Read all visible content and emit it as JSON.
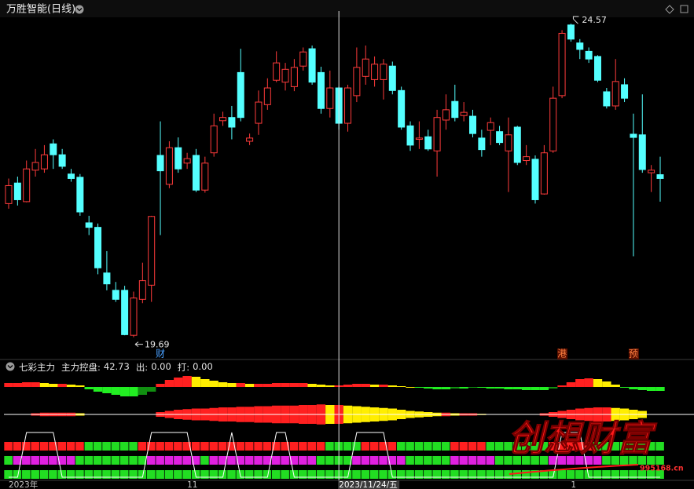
{
  "chart_data": [
    {
      "type": "candlestick",
      "title": "万胜智能(日线)",
      "categories": [
        "2023年",
        null,
        null,
        null,
        null,
        null,
        null,
        null,
        null,
        null,
        null,
        null,
        null,
        null,
        null,
        null,
        null,
        null,
        null,
        null,
        "11",
        null,
        null,
        null,
        null,
        null,
        null,
        null,
        null,
        null,
        null,
        null,
        null,
        null,
        null,
        null,
        null,
        "2023/11/24/五",
        null,
        null,
        null,
        null,
        null,
        null,
        null,
        null,
        null,
        null,
        null,
        null,
        null,
        null,
        null,
        null,
        null,
        null,
        null,
        null,
        null,
        null,
        null,
        null,
        null,
        "1",
        null,
        null,
        null,
        null,
        null,
        null,
        null,
        null,
        null,
        null
      ],
      "open": [
        21.77,
        22.09,
        21.8,
        22.29,
        22.31,
        22.7,
        22.53,
        22.23,
        22.18,
        21.47,
        21.4,
        20.69,
        20.42,
        20.42,
        19.72,
        20.28,
        20.5,
        22.52,
        22.07,
        22.64,
        22.4,
        22.52,
        21.98,
        22.56,
        23.06,
        23.11,
        23.81,
        22.74,
        23.02,
        23.31,
        23.69,
        23.66,
        23.59,
        23.91,
        24.18,
        23.81,
        23.25,
        23.57,
        23.02,
        23.45,
        23.75,
        23.7,
        23.7,
        23.91,
        23.53,
        22.98,
        22.77,
        22.81,
        22.59,
        23.07,
        23.36,
        23.14,
        23.13,
        22.79,
        22.91,
        22.89,
        22.59,
        22.96,
        22.44,
        22.46,
        21.92,
        22.59,
        23.45,
        24.55,
        24.27,
        24.14,
        24.06,
        23.51,
        23.29,
        23.62,
        22.85,
        22.84,
        22.25,
        22.22
      ],
      "high": [
        22.16,
        22.19,
        22.44,
        22.62,
        22.68,
        22.77,
        22.62,
        22.31,
        22.23,
        21.58,
        21.46,
        21.03,
        20.55,
        20.49,
        20.4,
        20.85,
        21.58,
        23.05,
        22.74,
        22.8,
        22.56,
        22.62,
        22.5,
        23.17,
        23.2,
        23.29,
        24.18,
        22.86,
        23.53,
        23.72,
        24.14,
        23.96,
        24.02,
        24.2,
        24.23,
        23.9,
        23.84,
        23.59,
        23.62,
        24.2,
        24.23,
        24.06,
        24.02,
        23.98,
        23.59,
        23.05,
        23.05,
        22.92,
        23.23,
        23.47,
        23.62,
        23.35,
        23.23,
        22.92,
        23.11,
        22.98,
        23.11,
        22.98,
        22.68,
        22.52,
        22.68,
        23.59,
        24.47,
        24.57,
        24.33,
        24.2,
        24.08,
        23.57,
        24.02,
        23.72,
        23.17,
        23.47,
        22.37,
        22.5
      ],
      "low": [
        21.69,
        21.74,
        21.79,
        22.19,
        22.25,
        22.31,
        22.31,
        22.11,
        21.58,
        21.28,
        20.67,
        20.42,
        20.24,
        19.72,
        19.69,
        20.22,
        20.24,
        21.28,
        22.01,
        22.25,
        22.31,
        21.95,
        21.94,
        22.5,
        22.98,
        22.77,
        23.05,
        22.68,
        22.84,
        23.23,
        23.66,
        23.53,
        23.52,
        23.84,
        23.62,
        23.17,
        23.11,
        22.92,
        22.89,
        23.35,
        23.62,
        23.59,
        23.39,
        23.47,
        22.92,
        22.59,
        22.62,
        22.59,
        22.19,
        22.92,
        23.05,
        23.05,
        22.8,
        22.5,
        22.68,
        22.68,
        21.95,
        22.37,
        22.37,
        21.77,
        21.91,
        22.56,
        23.41,
        24.29,
        24.02,
        23.96,
        23.66,
        23.25,
        23.23,
        23.35,
        20.95,
        22.25,
        21.95,
        21.8
      ],
      "close": [
        22.05,
        21.83,
        22.31,
        22.41,
        22.53,
        22.53,
        22.35,
        22.16,
        21.64,
        21.4,
        20.77,
        20.52,
        20.28,
        19.73,
        20.3,
        20.57,
        21.57,
        22.28,
        22.64,
        22.31,
        22.47,
        21.98,
        22.4,
        22.98,
        23.11,
        22.96,
        23.11,
        22.79,
        23.35,
        23.57,
        23.96,
        23.86,
        23.89,
        24.13,
        23.66,
        23.25,
        23.57,
        23.02,
        23.57,
        23.89,
        24.02,
        23.94,
        23.94,
        23.53,
        22.96,
        22.68,
        22.79,
        22.62,
        23.11,
        23.23,
        23.11,
        23.19,
        22.86,
        22.61,
        23.03,
        22.72,
        22.84,
        22.41,
        22.5,
        21.83,
        22.56,
        23.41,
        24.42,
        24.33,
        24.17,
        24.02,
        23.69,
        23.29,
        23.67,
        23.41,
        22.8,
        22.3,
        22.29,
        22.16
      ],
      "events": [
        null,
        null,
        null,
        null,
        null,
        null,
        null,
        null,
        null,
        null,
        null,
        null,
        null,
        null,
        null,
        null,
        null,
        "财",
        null,
        null,
        null,
        null,
        null,
        null,
        null,
        null,
        null,
        null,
        null,
        null,
        null,
        null,
        null,
        null,
        null,
        null,
        null,
        null,
        null,
        null,
        null,
        null,
        null,
        null,
        null,
        null,
        null,
        null,
        null,
        null,
        null,
        null,
        null,
        null,
        null,
        null,
        null,
        null,
        null,
        null,
        null,
        null,
        "港",
        null,
        null,
        null,
        null,
        null,
        null,
        null,
        "预",
        null,
        null,
        null
      ],
      "up_color": "#ff3b3b",
      "down_color": "#54ffff",
      "ylim": [
        19.38,
        24.67
      ],
      "crosshair_index": 37
    },
    {
      "type": "ribbon",
      "title": "七彩主力",
      "stats": [
        {
          "label": "主力控盘:",
          "value": 42.73
        },
        {
          "label": "出:",
          "value": {
            "value": 0,
            "label": "0.00"
          }
        },
        {
          "label": "打:",
          "value": {
            "value": 0,
            "label": "0.00"
          }
        }
      ],
      "flow": {
        "ylim": [
          -16,
          16
        ],
        "values": [
          5,
          5,
          6,
          6,
          5,
          4,
          4,
          3,
          2,
          -3,
          -6,
          -8,
          -10,
          -12,
          -12,
          -10,
          -6,
          4,
          9,
          12,
          14,
          13,
          10,
          8,
          6,
          5,
          5,
          4,
          4,
          4,
          5,
          5,
          5,
          5,
          4,
          3,
          2,
          2,
          3,
          4,
          4,
          3,
          3,
          2,
          1,
          0,
          -1,
          -2,
          -3,
          -3,
          -2,
          -2,
          -1,
          -1,
          -2,
          -2,
          -3,
          -3,
          -4,
          -4,
          -4,
          -2,
          2,
          6,
          10,
          11,
          10,
          7,
          3,
          -1,
          -3,
          -4,
          -5,
          -5
        ]
      },
      "strength": {
        "ylim": [
          0,
          20
        ],
        "values": [
          0,
          0,
          0,
          2,
          3,
          3,
          3,
          3,
          2,
          0,
          0,
          0,
          0,
          0,
          0,
          0,
          0,
          4,
          6,
          8,
          9,
          10,
          10,
          11,
          12,
          12,
          13,
          13,
          14,
          14,
          15,
          15,
          15,
          16,
          16,
          17,
          16,
          16,
          15,
          14,
          13,
          12,
          11,
          10,
          8,
          6,
          5,
          4,
          3,
          3,
          2,
          2,
          2,
          1,
          0,
          0,
          0,
          0,
          0,
          0,
          2,
          4,
          6,
          8,
          10,
          11,
          12,
          12,
          11,
          10,
          8,
          6,
          0,
          0
        ]
      },
      "pulse": {
        "ylim": [
          0,
          1
        ],
        "values": [
          0,
          0,
          1,
          1,
          1,
          1,
          0,
          0,
          0,
          0,
          0,
          0,
          0,
          0,
          0,
          0,
          1,
          1,
          1,
          1,
          1,
          0,
          0,
          0,
          0,
          1,
          0,
          0,
          0,
          0,
          1,
          1,
          0,
          0,
          0,
          0,
          0,
          0,
          0,
          1,
          1,
          1,
          1,
          0,
          0,
          0,
          0,
          0,
          0,
          0,
          0,
          0,
          0,
          0,
          0,
          0,
          0,
          0,
          0,
          0,
          0,
          0,
          1,
          1,
          1,
          0,
          0,
          0,
          0,
          0,
          0,
          0,
          0,
          0
        ]
      },
      "rows": [
        "rrrrrrrrrggggggrrrrrrrrrrrrrrrrrrrrrggggrrrrggggggrrrrgggggggrrrrrgggggggg",
        "gmmmmmmmggggggggmmmmmmgmmmmmmmmmmmmggggmmmmmmgggggmmmmmggggggmmmmmmggggggg",
        "gggggggggggggggggggggggggggggggggggggggggggggggggggggggggggggggggggggggggg"
      ],
      "palette": {
        "r": "#ff2020",
        "g": "#22dd22",
        "m": "#e020e0"
      },
      "flow_colors": {
        "up_rising": "#ff2020",
        "up_falling": "#ffee00",
        "down_falling": "#22ee22",
        "down_rising": "#118f11"
      },
      "strength_colors": {
        "rising": "#ff2020",
        "falling": "#ffee00"
      },
      "pulse_color": "#ffffff"
    }
  ],
  "watermark": {
    "text": "创想财富",
    "site": "995168.cn"
  }
}
